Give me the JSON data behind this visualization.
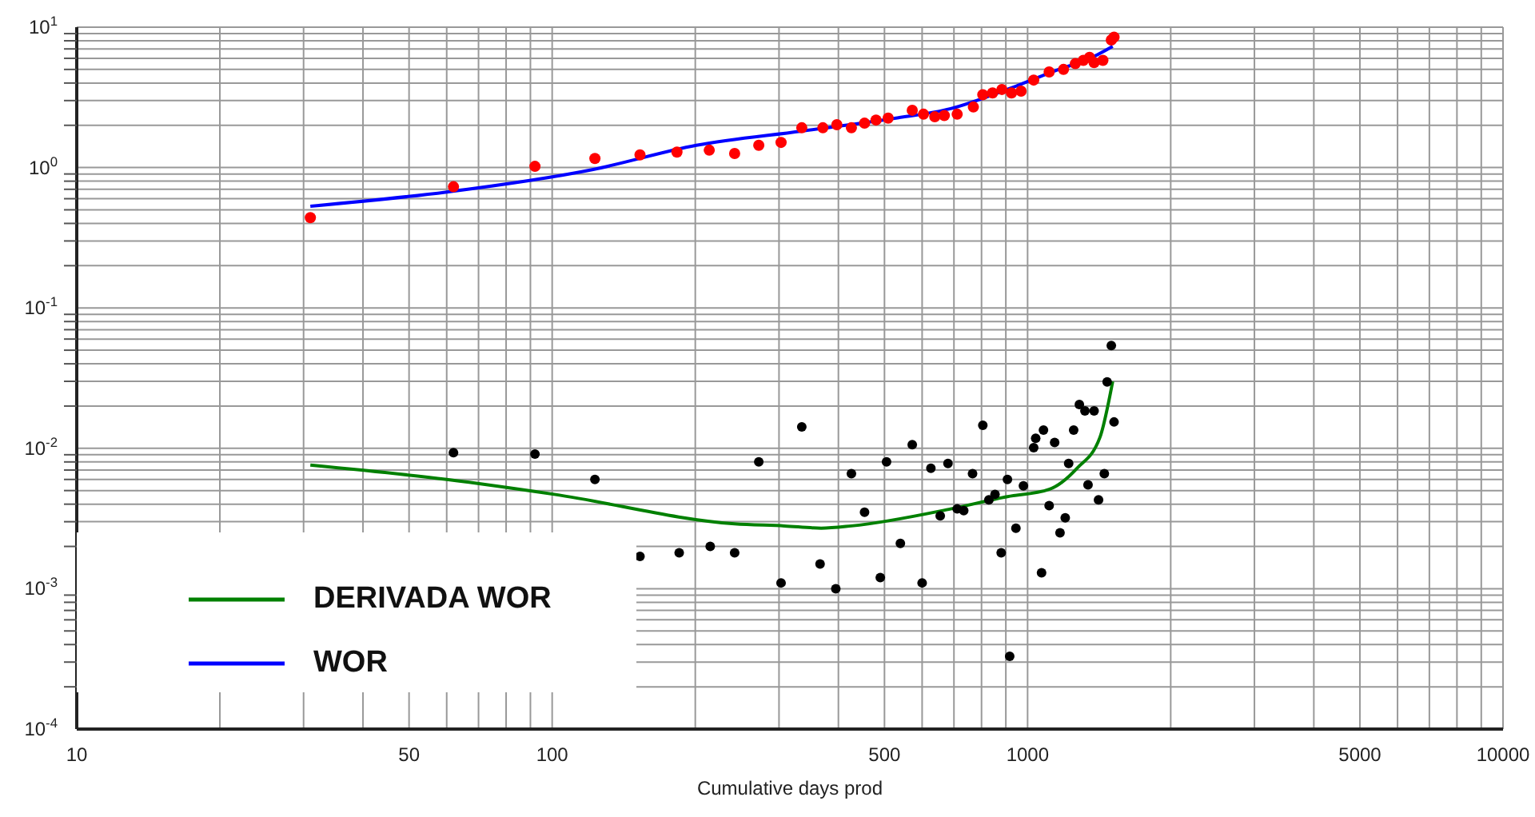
{
  "chart_data": {
    "type": "line",
    "xlabel": "Cumulative days prod",
    "log": "xy",
    "grid": true,
    "legend": "bottom left",
    "line_style": "solid",
    "xlim": [
      10,
      10000
    ],
    "xticks": [
      10,
      {
        "value": 20,
        "label": null
      },
      {
        "value": 30,
        "label": null
      },
      {
        "value": 40,
        "label": null
      },
      50,
      {
        "value": 60,
        "label": null
      },
      {
        "value": 70,
        "label": null
      },
      {
        "value": 80,
        "label": null
      },
      {
        "value": 90,
        "label": null
      },
      100,
      {
        "value": 200,
        "label": null
      },
      {
        "value": 300,
        "label": null
      },
      {
        "value": 400,
        "label": null
      },
      500,
      {
        "value": 600,
        "label": null
      },
      {
        "value": 700,
        "label": null
      },
      {
        "value": 800,
        "label": null
      },
      {
        "value": 900,
        "label": null
      },
      1000,
      {
        "value": 2000,
        "label": null
      },
      {
        "value": 3000,
        "label": null
      },
      {
        "value": 4000,
        "label": null
      },
      5000,
      {
        "value": 6000,
        "label": null
      },
      {
        "value": 7000,
        "label": null
      },
      {
        "value": 8000,
        "label": null
      },
      {
        "value": 9000,
        "label": null
      },
      10000
    ],
    "ylim": [
      0.0001,
      10
    ],
    "yticks": [
      {
        "value": 0.0001,
        "label": "10$^{-4}$"
      },
      {
        "value": 0.0002,
        "label": null
      },
      {
        "value": 0.0003,
        "label": null
      },
      {
        "value": 0.0004,
        "label": null
      },
      {
        "value": 0.0005,
        "label": null
      },
      {
        "value": 0.0006,
        "label": null
      },
      {
        "value": 0.0007,
        "label": null
      },
      {
        "value": 0.0008,
        "label": null
      },
      {
        "value": 0.0009,
        "label": null
      },
      {
        "value": 0.001,
        "label": "10$^{-3}$"
      },
      {
        "value": 0.002,
        "label": null
      },
      {
        "value": 0.003,
        "label": null
      },
      {
        "value": 0.004,
        "label": null
      },
      {
        "value": 0.005,
        "label": null
      },
      {
        "value": 0.006,
        "label": null
      },
      {
        "value": 0.007,
        "label": null
      },
      {
        "value": 0.008,
        "label": null
      },
      {
        "value": 0.009,
        "label": null
      },
      {
        "value": 0.01,
        "label": "10$^{-2}$"
      },
      {
        "value": 0.02,
        "label": null
      },
      {
        "value": 0.03,
        "label": null
      },
      {
        "value": 0.04,
        "label": null
      },
      {
        "value": 0.05,
        "label": null
      },
      {
        "value": 0.06,
        "label": null
      },
      {
        "value": 0.07,
        "label": null
      },
      {
        "value": 0.08,
        "label": null
      },
      {
        "value": 0.09,
        "label": null
      },
      {
        "value": 0.1,
        "label": "10$^{-1}$"
      },
      {
        "value": 0.2,
        "label": null
      },
      {
        "value": 0.3,
        "label": null
      },
      {
        "value": 0.4,
        "label": null
      },
      {
        "value": 0.5,
        "label": null
      },
      {
        "value": 0.6,
        "label": null
      },
      {
        "value": 0.7,
        "label": null
      },
      {
        "value": 0.8,
        "label": null
      },
      {
        "value": 0.9,
        "label": null
      },
      {
        "value": 1,
        "label": "10$^{0}$"
      },
      {
        "value": 2,
        "label": null
      },
      {
        "value": 3,
        "label": null
      },
      {
        "value": 4,
        "label": null
      },
      {
        "value": 5,
        "label": null
      },
      {
        "value": 6,
        "label": null
      },
      {
        "value": 7,
        "label": null
      },
      {
        "value": 8,
        "label": null
      },
      {
        "value": 9,
        "label": null
      },
      {
        "value": 10,
        "label": "10$^{1}$"
      }
    ],
    "series": [
      {
        "type": "scatter",
        "marker": "circle",
        "color": "#ff0000",
        "x": [
          31,
          62,
          92,
          123,
          153,
          183,
          214,
          242,
          272,
          303,
          335,
          371,
          397,
          426,
          454,
          480,
          509,
          572,
          604,
          638,
          668,
          711,
          769,
          805,
          844,
          883,
          925,
          969,
          1030,
          1110,
          1190,
          1260,
          1310,
          1350,
          1380,
          1440,
          1500,
          1520
        ],
        "values": [
          0.44,
          0.73,
          1.02,
          1.16,
          1.23,
          1.29,
          1.33,
          1.26,
          1.44,
          1.51,
          1.92,
          1.92,
          2.02,
          1.92,
          2.07,
          2.18,
          2.25,
          2.56,
          2.4,
          2.3,
          2.35,
          2.4,
          2.7,
          3.3,
          3.4,
          3.6,
          3.4,
          3.5,
          4.2,
          4.8,
          5.0,
          5.5,
          5.8,
          6.1,
          5.6,
          5.8,
          8.1,
          8.5
        ]
      },
      {
        "type": "scatter",
        "marker": "circle",
        "color": "#000000",
        "x": [
          62,
          92,
          123,
          153,
          185,
          215,
          242,
          272,
          303,
          335,
          366,
          395,
          426,
          454,
          490,
          505,
          540,
          572,
          600,
          626,
          655,
          680,
          711,
          734,
          766,
          805,
          829,
          854,
          880,
          907,
          917,
          945,
          980,
          1030,
          1040,
          1070,
          1080,
          1110,
          1140,
          1170,
          1200,
          1220,
          1250,
          1285,
          1320,
          1340,
          1380,
          1410,
          1450,
          1470,
          1500,
          1520
        ],
        "values": [
          0.0093,
          0.0091,
          0.006,
          0.0017,
          0.0018,
          0.002,
          0.0018,
          0.008,
          0.0011,
          0.0142,
          0.0015,
          0.001,
          0.0066,
          0.0035,
          0.0012,
          0.008,
          0.0021,
          0.0106,
          0.0011,
          0.0072,
          0.0033,
          0.0078,
          0.0037,
          0.0036,
          0.0066,
          0.0146,
          0.0043,
          0.0047,
          0.0018,
          0.006,
          0.00033,
          0.0027,
          0.0054,
          0.0101,
          0.0118,
          0.0013,
          0.0135,
          0.0039,
          0.011,
          0.0025,
          0.0032,
          0.0078,
          0.0135,
          0.0205,
          0.0185,
          0.0055,
          0.0185,
          0.0043,
          0.0066,
          0.0297,
          0.054,
          0.0154
        ]
      },
      {
        "type": "line",
        "name": "DERIVADA WOR",
        "color": "#008000",
        "x": [
          31,
          60,
          101,
          242,
          308,
          368,
          426,
          689,
          897,
          1110,
          1270,
          1420,
          1510
        ],
        "values": [
          0.0076,
          0.006,
          0.0047,
          0.0029,
          0.0028,
          0.0027,
          0.0028,
          0.0037,
          0.0045,
          0.0051,
          0.0072,
          0.012,
          0.03
        ]
      },
      {
        "type": "line",
        "name": "WOR",
        "color": "#0000ff",
        "x": [
          31,
          60,
          122,
          201,
          335,
          525,
          689,
          925,
          1175,
          1340,
          1510
        ],
        "values": [
          0.53,
          0.67,
          0.97,
          1.44,
          1.82,
          2.24,
          2.63,
          3.7,
          5.06,
          5.9,
          7.3
        ]
      }
    ]
  }
}
